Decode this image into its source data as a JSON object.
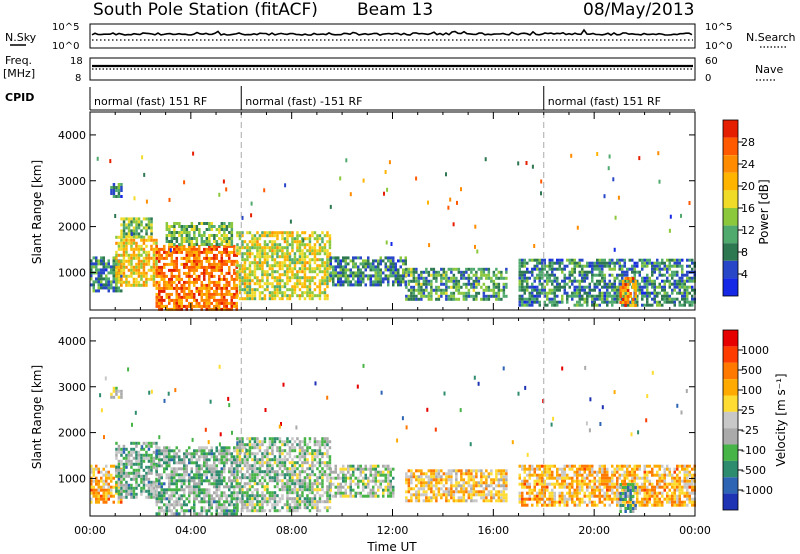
{
  "header": {
    "station": "South Pole Station (fitACF)",
    "beam": "Beam 13",
    "date": "08/May/2013"
  },
  "strips": {
    "nsky_label": "N.Sky",
    "nsearch_label": "N.Search",
    "freq_label_1": "Freq.",
    "freq_label_2": "[MHz]",
    "nave_label": "Nave",
    "cpid_label": "CPID",
    "left_top_tick": "10^5",
    "left_bottom_tick": "10^0",
    "right_top_tick": "10^5",
    "right_bottom_tick": "10^0",
    "freq_ticks": [
      "18",
      "8"
    ],
    "nave_ticks": [
      "60",
      "0"
    ]
  },
  "cpid_segments": [
    {
      "label": "normal (fast) 151 RF",
      "start_hour": 0,
      "end_hour": 6
    },
    {
      "label": "normal (fast) -151 RF",
      "start_hour": 6,
      "end_hour": 18
    },
    {
      "label": "normal (fast) 151 RF",
      "start_hour": 18,
      "end_hour": 24
    }
  ],
  "axes": {
    "x_label": "Time UT",
    "x_ticks": [
      "00:00",
      "04:00",
      "08:00",
      "12:00",
      "16:00",
      "20:00",
      "00:00"
    ],
    "y_label": "Slant Range [km]",
    "y_ticks": [
      "1000",
      "2000",
      "3000",
      "4000"
    ]
  },
  "colorbars": {
    "power": {
      "label": "Power [dB]",
      "ticks": [
        "4",
        "8",
        "12",
        "16",
        "20",
        "24",
        "28"
      ],
      "colors": [
        "#1428e6",
        "#2846c8",
        "#2d7850",
        "#50aa6e",
        "#8cc83c",
        "#f0dc28",
        "#ffb400",
        "#ff8c00",
        "#ff5a00",
        "#e61e00"
      ]
    },
    "velocity": {
      "label": "Velocity [m s⁻¹]",
      "ticks": [
        "1000",
        "500",
        "100",
        "25",
        "-25",
        "-100",
        "-500",
        "-1000"
      ],
      "colors": [
        "#1e32b4",
        "#2d64b4",
        "#2d8c6e",
        "#46b446",
        "#aaaaaa",
        "#c8c8c8",
        "#ffdc32",
        "#ffaa00",
        "#ff7800",
        "#ff3c00",
        "#e60000"
      ]
    }
  },
  "chart_data": [
    {
      "type": "heatmap",
      "title": "South Pole Station (fitACF) Beam 13 08/May/2013",
      "xlabel": "Time UT",
      "ylabel": "Slant Range [km]",
      "xlim": [
        0,
        24
      ],
      "ylim": [
        180,
        4500
      ],
      "quantity": "Power [dB]",
      "colorbar_range": [
        0,
        30
      ],
      "regions": [
        {
          "start_hour": 0.0,
          "end_hour": 1.2,
          "range_min_km": 600,
          "range_max_km": 1350,
          "typical": 8
        },
        {
          "start_hour": 0.8,
          "end_hour": 1.2,
          "range_min_km": 2650,
          "range_max_km": 2950,
          "typical": 8
        },
        {
          "start_hour": 1.0,
          "end_hour": 2.6,
          "range_min_km": 700,
          "range_max_km": 1800,
          "typical": 18
        },
        {
          "start_hour": 1.2,
          "end_hour": 2.4,
          "range_min_km": 1800,
          "range_max_km": 2200,
          "typical": 12
        },
        {
          "start_hour": 2.6,
          "end_hour": 5.8,
          "range_min_km": 200,
          "range_max_km": 1600,
          "typical": 24
        },
        {
          "start_hour": 3.0,
          "end_hour": 5.6,
          "range_min_km": 1600,
          "range_max_km": 2100,
          "typical": 12
        },
        {
          "start_hour": 5.8,
          "end_hour": 9.5,
          "range_min_km": 400,
          "range_max_km": 1900,
          "typical": 16
        },
        {
          "start_hour": 9.5,
          "end_hour": 12.5,
          "range_min_km": 700,
          "range_max_km": 1350,
          "typical": 8
        },
        {
          "start_hour": 12.5,
          "end_hour": 16.5,
          "range_min_km": 400,
          "range_max_km": 1100,
          "typical": 10
        },
        {
          "start_hour": 17.0,
          "end_hour": 24.0,
          "range_min_km": 300,
          "range_max_km": 1300,
          "typical": 8
        },
        {
          "start_hour": 21.0,
          "end_hour": 21.6,
          "range_min_km": 300,
          "range_max_km": 900,
          "typical": 22
        }
      ]
    },
    {
      "type": "heatmap",
      "title": "",
      "xlabel": "Time UT",
      "ylabel": "Slant Range [km]",
      "xlim": [
        0,
        24
      ],
      "ylim": [
        180,
        4500
      ],
      "quantity": "Velocity [m s⁻¹]",
      "colorbar_range": [
        -1000,
        1000
      ],
      "regions": [
        {
          "start_hour": 0.0,
          "end_hour": 1.2,
          "range_min_km": 500,
          "range_max_km": 1300,
          "typical": 300
        },
        {
          "start_hour": 0.8,
          "end_hour": 1.2,
          "range_min_km": 2800,
          "range_max_km": 3000,
          "typical": 0
        },
        {
          "start_hour": 1.0,
          "end_hour": 2.6,
          "range_min_km": 600,
          "range_max_km": 1800,
          "typical": -300
        },
        {
          "start_hour": 2.6,
          "end_hour": 5.8,
          "range_min_km": 200,
          "range_max_km": 1700,
          "typical": -300
        },
        {
          "start_hour": 5.8,
          "end_hour": 9.5,
          "range_min_km": 300,
          "range_max_km": 1900,
          "typical": -200
        },
        {
          "start_hour": 9.5,
          "end_hour": 12.0,
          "range_min_km": 600,
          "range_max_km": 1300,
          "typical": -150
        },
        {
          "start_hour": 12.5,
          "end_hour": 16.5,
          "range_min_km": 500,
          "range_max_km": 1200,
          "typical": 200
        },
        {
          "start_hour": 17.0,
          "end_hour": 24.0,
          "range_min_km": 400,
          "range_max_km": 1300,
          "typical": 300
        },
        {
          "start_hour": 21.0,
          "end_hour": 21.6,
          "range_min_km": 300,
          "range_max_km": 900,
          "typical": -400
        }
      ]
    }
  ]
}
